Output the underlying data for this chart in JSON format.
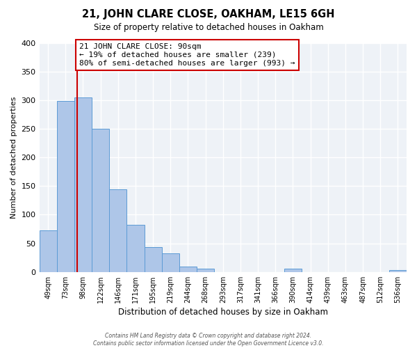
{
  "title": "21, JOHN CLARE CLOSE, OAKHAM, LE15 6GH",
  "subtitle": "Size of property relative to detached houses in Oakham",
  "xlabel": "Distribution of detached houses by size in Oakham",
  "ylabel": "Number of detached properties",
  "footer_line1": "Contains HM Land Registry data © Crown copyright and database right 2024.",
  "footer_line2": "Contains public sector information licensed under the Open Government Licence v3.0.",
  "bin_labels": [
    "49sqm",
    "73sqm",
    "98sqm",
    "122sqm",
    "146sqm",
    "171sqm",
    "195sqm",
    "219sqm",
    "244sqm",
    "268sqm",
    "293sqm",
    "317sqm",
    "341sqm",
    "366sqm",
    "390sqm",
    "414sqm",
    "439sqm",
    "463sqm",
    "487sqm",
    "512sqm",
    "536sqm"
  ],
  "bar_heights": [
    73,
    299,
    305,
    250,
    144,
    82,
    44,
    32,
    10,
    6,
    0,
    0,
    0,
    0,
    6,
    0,
    0,
    0,
    0,
    0,
    3
  ],
  "bar_color": "#aec6e8",
  "bar_edge_color": "#5b9bd5",
  "ylim": [
    0,
    400
  ],
  "yticks": [
    0,
    50,
    100,
    150,
    200,
    250,
    300,
    350,
    400
  ],
  "property_line_idx": 1,
  "property_line_color": "#cc0000",
  "annotation_title": "21 JOHN CLARE CLOSE: 90sqm",
  "annotation_line1": "← 19% of detached houses are smaller (239)",
  "annotation_line2": "80% of semi-detached houses are larger (993) →",
  "annotation_box_color": "#cc0000",
  "background_color": "#eef2f7",
  "grid_color": "#ffffff",
  "n_bars": 21
}
